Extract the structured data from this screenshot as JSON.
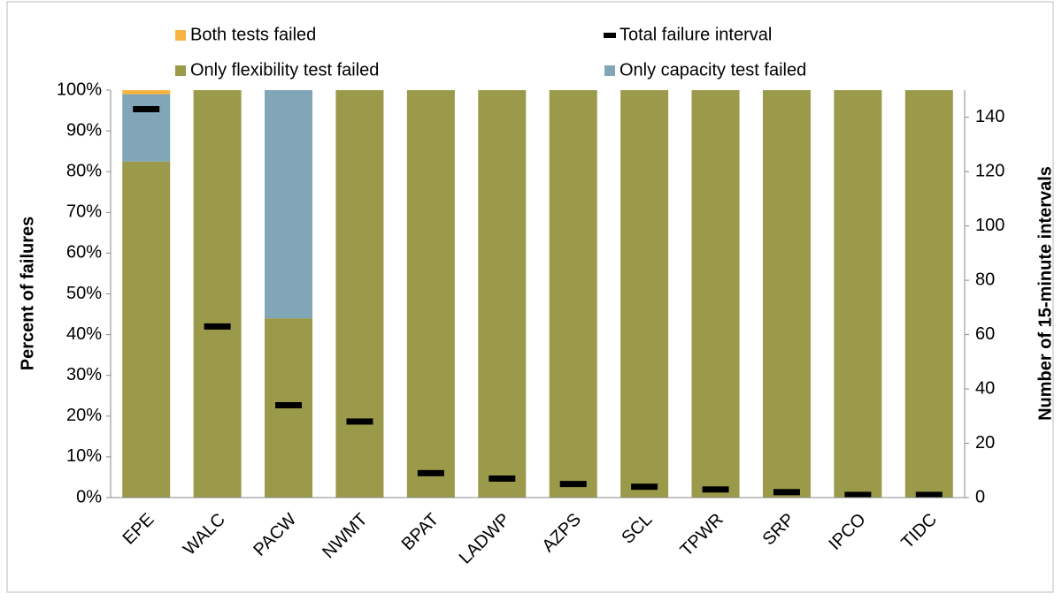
{
  "chart_data": {
    "type": "bar",
    "stacked": true,
    "categories": [
      "EPE",
      "WALC",
      "PACW",
      "NWMT",
      "BPAT",
      "LADWP",
      "AZPS",
      "SCL",
      "TPWR",
      "SRP",
      "IPCO",
      "TIDC"
    ],
    "series": [
      {
        "name": "Only flexibility test failed",
        "color": "#9a9a4a",
        "values": [
          82.5,
          100,
          44,
          100,
          100,
          100,
          100,
          100,
          100,
          100,
          100,
          100
        ]
      },
      {
        "name": "Only capacity test failed",
        "color": "#80a6b8",
        "values": [
          16.5,
          0,
          56,
          0,
          0,
          0,
          0,
          0,
          0,
          0,
          0,
          0
        ]
      },
      {
        "name": "Both tests failed",
        "color": "#f7b441",
        "values": [
          1,
          0,
          0,
          0,
          0,
          0,
          0,
          0,
          0,
          0,
          0,
          0
        ]
      },
      {
        "name": "Total failure interval",
        "color": "#000000",
        "axis": "y2",
        "values": [
          143,
          63,
          34,
          28,
          9,
          7,
          5,
          4,
          3,
          2,
          1,
          1
        ]
      }
    ],
    "ylabel": "Percent of failures",
    "y2label": "Number of 15-minute intervals",
    "ylim": [
      0,
      100
    ],
    "yticks": [
      {
        "value": 0,
        "label": "0%"
      },
      {
        "value": 10,
        "label": "10%"
      },
      {
        "value": 20,
        "label": "20%"
      },
      {
        "value": 30,
        "label": "30%"
      },
      {
        "value": 40,
        "label": "40%"
      },
      {
        "value": 50,
        "label": "50%"
      },
      {
        "value": 60,
        "label": "60%"
      },
      {
        "value": 70,
        "label": "70%"
      },
      {
        "value": 80,
        "label": "80%"
      },
      {
        "value": 90,
        "label": "90%"
      },
      {
        "value": 100,
        "label": "100%"
      }
    ],
    "y2lim": [
      0,
      150
    ],
    "y2ticks": [
      0,
      20,
      40,
      60,
      80,
      100,
      120,
      140
    ]
  }
}
